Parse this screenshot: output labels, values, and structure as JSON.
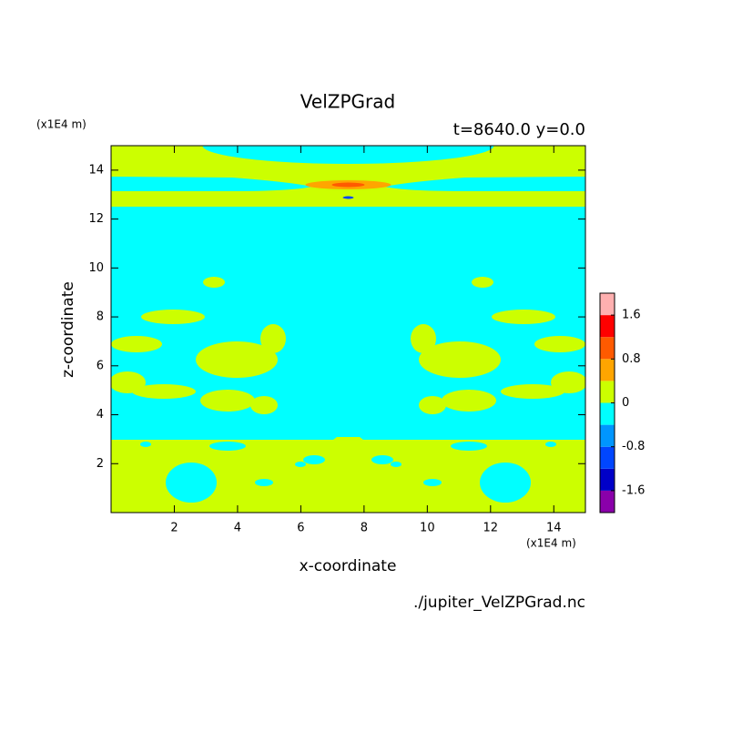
{
  "chart_data": {
    "type": "contour",
    "title": "VelZPGrad",
    "subtitle": "t=8640.0 y=0.0",
    "x_label": "x-coordinate",
    "y_label": "z-coordinate",
    "x_unit": "(x1E4 m)",
    "y_unit": "(x1E4 m)",
    "source": "./jupiter_VelZPGrad.nc",
    "xlim": [
      0,
      15
    ],
    "ylim": [
      0,
      15
    ],
    "xticks": [
      2,
      4,
      6,
      8,
      10,
      12,
      14
    ],
    "yticks": [
      2,
      4,
      6,
      8,
      10,
      12,
      14
    ],
    "colorbar": {
      "levels": [
        -2.0,
        -1.6,
        -1.2,
        -0.8,
        -0.4,
        0,
        0.4,
        0.8,
        1.2,
        1.6,
        2.0
      ],
      "colors": [
        "#8a00aa",
        "#0000c8",
        "#0046ff",
        "#0096ff",
        "#00ffff",
        "#ccff00",
        "#ffa500",
        "#ff5a00",
        "#ff0000",
        "#ffb0b0"
      ],
      "ticks": [
        -1.6,
        -0.8,
        0,
        0.8,
        1.6
      ]
    }
  }
}
